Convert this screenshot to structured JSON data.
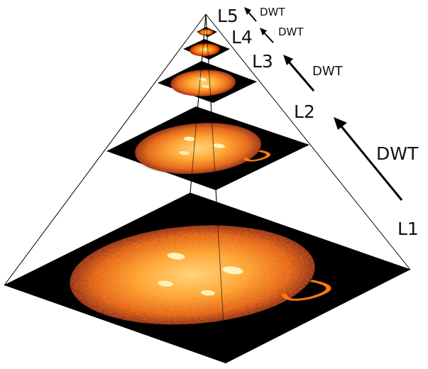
{
  "levels": [
    {
      "label": "L1"
    },
    {
      "label": "L2"
    },
    {
      "label": "L3"
    },
    {
      "label": "L4"
    },
    {
      "label": "L5"
    }
  ],
  "transforms": [
    {
      "label": "DWT"
    },
    {
      "label": "DWT"
    },
    {
      "label": "DWT"
    },
    {
      "label": "DWT"
    }
  ],
  "colors": {
    "sun_core": "#ffb347",
    "sun_mid": "#ff6a00",
    "sun_edge": "#b32400",
    "plate": "#000000",
    "line": "#000000"
  }
}
